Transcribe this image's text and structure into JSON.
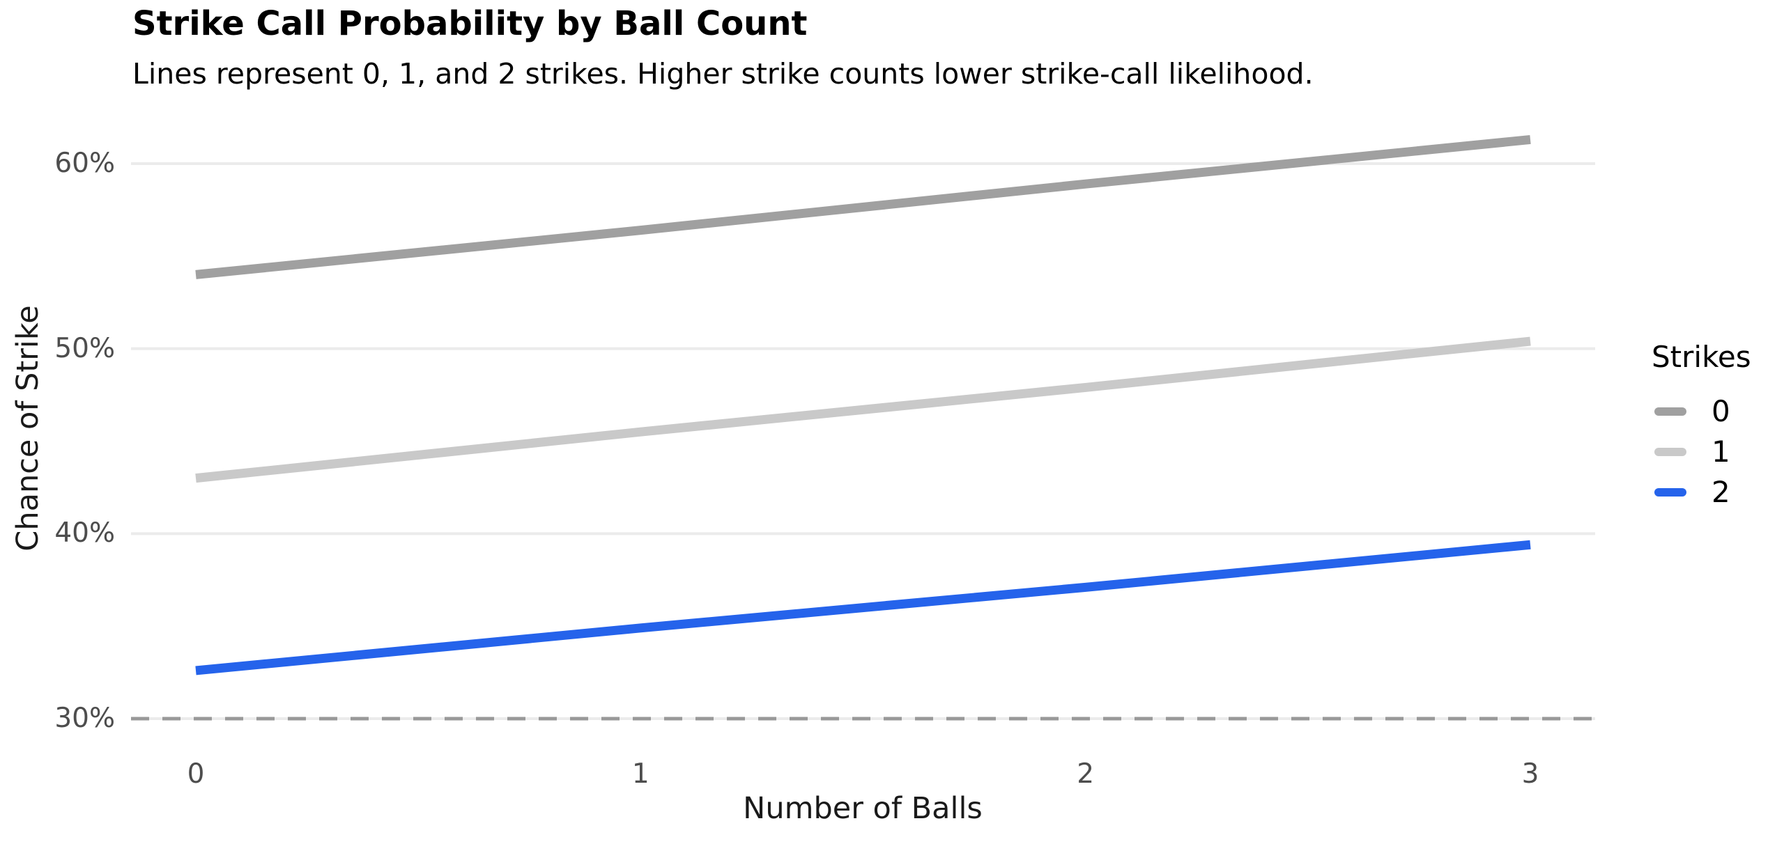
{
  "chart_data": {
    "type": "line",
    "title": "Strike Call Probability by Ball Count",
    "subtitle": "Lines represent 0, 1, and 2 strikes. Higher strike counts lower strike-call likelihood.",
    "xlabel": "Number of Balls",
    "ylabel": "Chance of Strike",
    "x": [
      0,
      1,
      2,
      3
    ],
    "xticks": [
      {
        "value": 0,
        "label": "0"
      },
      {
        "value": 1,
        "label": "1"
      },
      {
        "value": 2,
        "label": "2"
      },
      {
        "value": 3,
        "label": "3"
      }
    ],
    "yticks": [
      {
        "value": 30,
        "label": "30%"
      },
      {
        "value": 40,
        "label": "40%"
      },
      {
        "value": 50,
        "label": "50%"
      },
      {
        "value": 60,
        "label": "60%"
      }
    ],
    "xlim": [
      0,
      3
    ],
    "ylim": [
      29,
      63
    ],
    "grid": "horizontal-only",
    "series": [
      {
        "name": "0",
        "color": "#a0a0a0",
        "values": [
          54.0,
          56.4,
          58.9,
          61.3
        ]
      },
      {
        "name": "1",
        "color": "#c9c9c9",
        "values": [
          43.0,
          45.5,
          47.9,
          50.4
        ]
      },
      {
        "name": "2",
        "color": "#2563eb",
        "values": [
          32.6,
          34.9,
          37.1,
          39.4
        ]
      }
    ],
    "dashed_reference_line": {
      "y": 30,
      "style": "dashed",
      "color": "#999999"
    },
    "legend": {
      "title": "Strikes",
      "position": "right",
      "entries": [
        "0",
        "1",
        "2"
      ]
    },
    "colors": {
      "background": "#ffffff",
      "gridline": "#ebebeb",
      "dashed_line": "#999999",
      "tick_label": "#4d4d4d",
      "axis_title": "#1a1a1a",
      "text": "#000000"
    }
  }
}
